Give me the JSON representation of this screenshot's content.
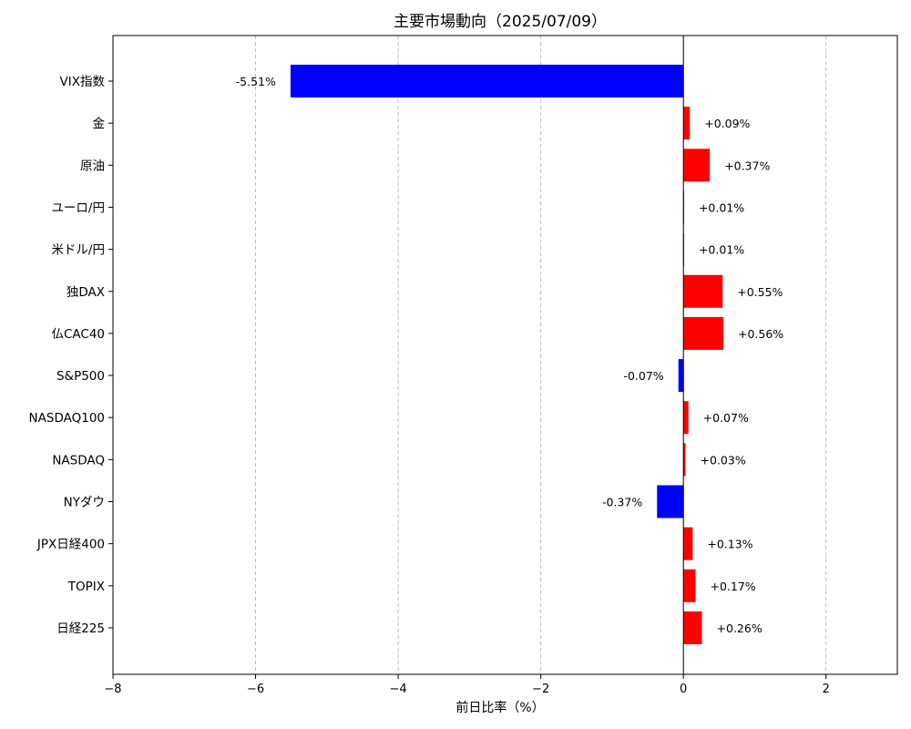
{
  "chart_data": {
    "type": "bar",
    "orientation": "horizontal",
    "title": "主要市場動向（2025/07/09）",
    "xlabel": "前日比率（%）",
    "ylabel": "",
    "xlim": [
      -8,
      3
    ],
    "xticks": [
      -8,
      -6,
      -4,
      -2,
      0,
      2
    ],
    "xtick_labels": [
      "−8",
      "−6",
      "−4",
      "−2",
      "0",
      "2"
    ],
    "grid": {
      "x": true,
      "y": false
    },
    "colors": {
      "positive": "#ff0000",
      "negative": "#0000ff",
      "zero_line": "#000000"
    },
    "categories": [
      "VIX指数",
      "金",
      "原油",
      "ユーロ/円",
      "米ドル/円",
      "独DAX",
      "仏CAC40",
      "S&P500",
      "NASDAQ100",
      "NASDAQ",
      "NYダウ",
      "JPX日経400",
      "TOPIX",
      "日経225"
    ],
    "values": [
      -5.51,
      0.09,
      0.37,
      0.01,
      0.01,
      0.55,
      0.56,
      -0.07,
      0.07,
      0.03,
      -0.37,
      0.13,
      0.17,
      0.26
    ],
    "value_labels": [
      "-5.51%",
      "+0.09%",
      "+0.37%",
      "+0.01%",
      "+0.01%",
      "+0.55%",
      "+0.56%",
      "-0.07%",
      "+0.07%",
      "+0.03%",
      "-0.37%",
      "+0.13%",
      "+0.17%",
      "+0.26%"
    ]
  }
}
